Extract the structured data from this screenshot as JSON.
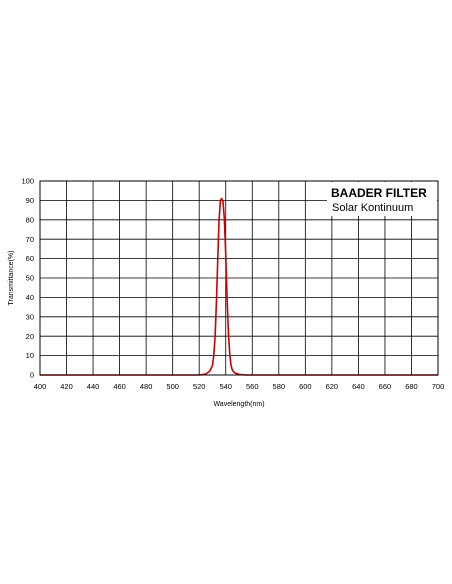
{
  "chart_data": {
    "type": "line",
    "title": "",
    "xlabel": "Wavelength(nm)",
    "ylabel": "Transmittance(%)",
    "xlim": [
      400,
      700
    ],
    "ylim": [
      0,
      100
    ],
    "grid": true,
    "legend_position": "top-right",
    "legend": {
      "title": "BAADER FILTER",
      "subtitle": "Solar Kontinuum"
    },
    "x_ticks": [
      "400",
      "420",
      "440",
      "460",
      "480",
      "500",
      "520",
      "540",
      "560",
      "580",
      "600",
      "620",
      "640",
      "660",
      "680",
      "700"
    ],
    "y_ticks": [
      "0",
      "10",
      "20",
      "30",
      "40",
      "50",
      "60",
      "70",
      "80",
      "90",
      "100"
    ],
    "series": [
      {
        "color": "#cc0000",
        "x": [
          400,
          500,
          520,
          525,
          528,
          530,
          531,
          532,
          533,
          534,
          535,
          536,
          537,
          538,
          539,
          540,
          541,
          542,
          543,
          544,
          545,
          547,
          550,
          555,
          560,
          600,
          700
        ],
        "y": [
          0,
          0,
          0,
          0.5,
          2,
          5,
          10,
          20,
          38,
          60,
          80,
          90,
          91,
          89,
          80,
          62,
          40,
          22,
          11,
          5,
          2.5,
          1,
          0.3,
          0,
          0,
          0,
          0
        ]
      }
    ]
  }
}
